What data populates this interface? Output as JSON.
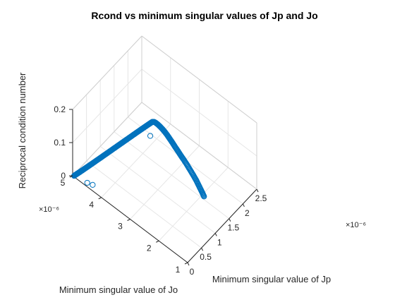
{
  "chart_data": {
    "type": "scatter",
    "plot3d": true,
    "title": "Rcond vs minimum singular values of Jp and Jo",
    "xlabel": "Minimum singular value of Jp",
    "ylabel": "Minimum singular value of Jo",
    "zlabel": "Reciprocal condition number",
    "x_exponent_label": "×10⁻⁶",
    "y_exponent_label": "×10⁻⁶",
    "xlim": [
      0,
      2.5
    ],
    "ylim": [
      1,
      5
    ],
    "zlim": [
      0,
      0.2
    ],
    "x_ticks": [
      0,
      0.5,
      1,
      1.5,
      2,
      2.5
    ],
    "x_tick_labels": [
      "0",
      "0.5",
      "1",
      "1.5",
      "2",
      "2.5"
    ],
    "y_ticks": [
      1,
      2,
      3,
      4,
      5
    ],
    "y_tick_labels": [
      "1",
      "2",
      "3",
      "4",
      "5"
    ],
    "z_ticks": [
      0,
      0.1,
      0.2
    ],
    "z_tick_labels": [
      "0",
      "0.1",
      "0.2"
    ],
    "grid": true,
    "marker": "o",
    "marker_color": "#0072BD",
    "series": [
      {
        "x": [
          0.0,
          0.02,
          0.04,
          0.06,
          0.08,
          0.1,
          0.13,
          0.16,
          0.2,
          0.24,
          0.28,
          0.33,
          0.38,
          0.43,
          0.48,
          0.54,
          0.6,
          0.66,
          0.72,
          0.78,
          0.84,
          0.9,
          0.96,
          1.01,
          1.06,
          1.1,
          1.14,
          1.17,
          1.2,
          1.22,
          1.24,
          1.25,
          1.26,
          1.265,
          1.27,
          1.275,
          1.28,
          1.285,
          1.29,
          1.3,
          1.31,
          1.33,
          1.35,
          1.38,
          1.41,
          1.44,
          1.47,
          1.5,
          1.52,
          1.54,
          1.55
        ],
        "y": [
          4.95,
          4.93,
          4.9,
          4.87,
          4.84,
          4.81,
          4.77,
          4.73,
          4.68,
          4.63,
          4.58,
          4.52,
          4.46,
          4.4,
          4.34,
          4.27,
          4.2,
          4.13,
          4.06,
          3.99,
          3.92,
          3.85,
          3.78,
          3.72,
          3.66,
          3.61,
          3.56,
          3.52,
          3.48,
          3.45,
          3.42,
          3.38,
          3.32,
          3.25,
          3.18,
          3.1,
          3.02,
          2.94,
          2.86,
          2.78,
          2.7,
          2.62,
          2.54,
          2.46,
          2.38,
          2.3,
          2.22,
          2.14,
          2.06,
          1.98,
          1.92
        ],
        "z": [
          0.003,
          0.005,
          0.008,
          0.011,
          0.014,
          0.017,
          0.021,
          0.025,
          0.03,
          0.035,
          0.04,
          0.046,
          0.052,
          0.058,
          0.064,
          0.071,
          0.078,
          0.085,
          0.092,
          0.099,
          0.106,
          0.113,
          0.12,
          0.126,
          0.132,
          0.137,
          0.142,
          0.146,
          0.15,
          0.153,
          0.156,
          0.158,
          0.158,
          0.157,
          0.155,
          0.152,
          0.148,
          0.143,
          0.137,
          0.13,
          0.122,
          0.113,
          0.103,
          0.092,
          0.08,
          0.067,
          0.054,
          0.04,
          0.026,
          0.012,
          0.002
        ]
      },
      {
        "x": [
          0.06,
          0.1,
          1.3
        ],
        "y": [
          4.55,
          4.4,
          3.55
        ],
        "z": [
          0.003,
          0.003,
          0.1
        ]
      }
    ]
  }
}
